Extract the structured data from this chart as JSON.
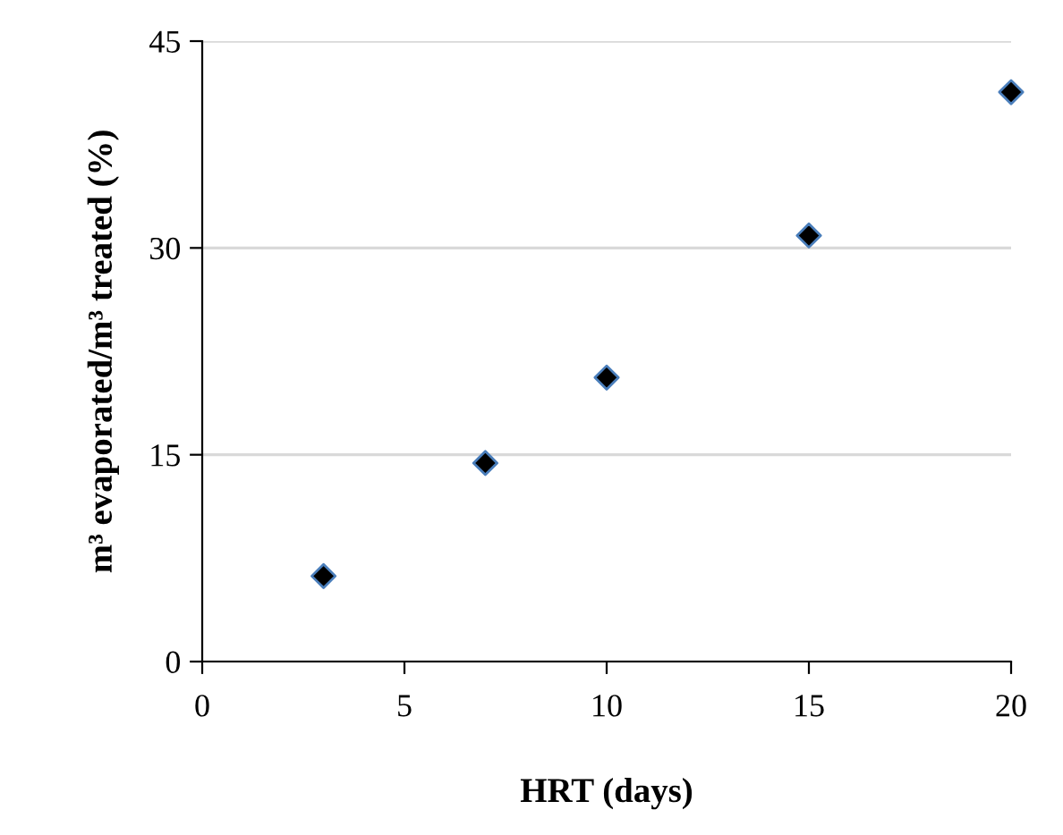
{
  "chart_data": {
    "type": "scatter",
    "xlabel": "HRT (days)",
    "ylabel": "m³ evaporated/m³ treated (%)",
    "x": [
      3,
      7,
      10,
      15,
      20
    ],
    "series": [
      {
        "color": "#000000",
        "values": [
          6.2,
          14.4,
          20.6,
          30.9,
          41.3
        ]
      }
    ],
    "marker": "diamond",
    "xlim": [
      0,
      20
    ],
    "ylim": [
      0,
      45
    ],
    "xticks": [
      0,
      5,
      10,
      15,
      20
    ],
    "yticks": [
      0,
      15,
      30,
      45
    ],
    "grid": "y",
    "legend": false
  }
}
